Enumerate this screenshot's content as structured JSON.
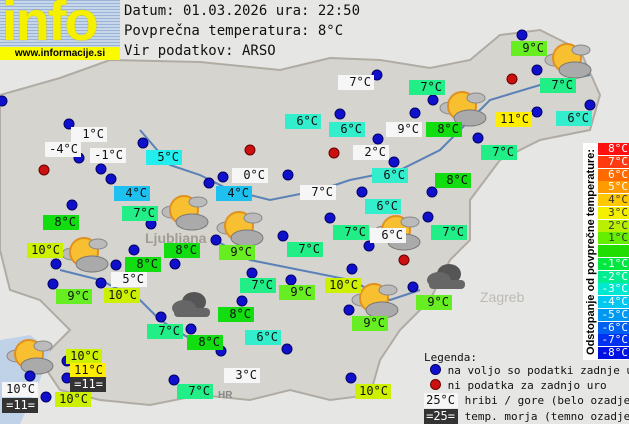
{
  "logo": {
    "word": "info",
    "url": "www.informacije.si"
  },
  "header": {
    "date_line": "Datum: 01.03.2026 ura: 22:50",
    "avg_line": "Povprečna temperatura: 8°C",
    "source_line": "Vir podatkov: ARSO"
  },
  "stations": [
    "1°C",
    "-4°C",
    "-1°C",
    "5°C",
    "0°C",
    "4°C",
    "4°C",
    "7°C",
    "8°C",
    "10°C",
    "8°C",
    "8°C",
    "9°C",
    "5°C",
    "9°C",
    "10°C",
    "7°C",
    "9°C",
    "7°C",
    "7°C",
    "7°C",
    "9°C",
    "7°C",
    "11°C",
    "6°C",
    "6°C",
    "9°C",
    "8°C",
    "2°C",
    "7°C",
    "6°C",
    "8°C",
    "7°C",
    "6°C",
    "7°C",
    "6°C",
    "7°C",
    "6°C",
    "10°C",
    "9°C",
    "9°C",
    "8°C",
    "7°C",
    "8°C",
    "6°C",
    "3°C",
    "7°C",
    "10°C",
    "10°C",
    "11°C",
    "=11=",
    "10°C",
    "=11=",
    "10°C"
  ],
  "map": {
    "labels": [
      "Ljubljana",
      "Zagreb",
      "HR"
    ]
  },
  "colorbar": {
    "title": "Odstopanje od povprečne temperature:",
    "cells": [
      {
        "label": "8°C",
        "color": "#ff1010"
      },
      {
        "label": "7°C",
        "color": "#ff3a10"
      },
      {
        "label": "6°C",
        "color": "#ff6a00"
      },
      {
        "label": "5°C",
        "color": "#ff9a00"
      },
      {
        "label": "4°C",
        "color": "#ffc800"
      },
      {
        "label": "3°C",
        "color": "#f4f000"
      },
      {
        "label": "2°C",
        "color": "#b8f000"
      },
      {
        "label": "1°C",
        "color": "#66ee00"
      },
      {
        "label": "",
        "color": "#22dd00"
      },
      {
        "label": "-1°C",
        "color": "#00e840"
      },
      {
        "label": "-2°C",
        "color": "#00ee90"
      },
      {
        "label": "-3°C",
        "color": "#00e8d0"
      },
      {
        "label": "-4°C",
        "color": "#00c8f0"
      },
      {
        "label": "-5°C",
        "color": "#0098f0"
      },
      {
        "label": "-6°C",
        "color": "#0060f0"
      },
      {
        "label": "-7°C",
        "color": "#0030f0"
      },
      {
        "label": "-8°C",
        "color": "#0010e0"
      }
    ]
  },
  "legend": {
    "title": "Legenda:",
    "blue": "na voljo so podatki zadnje ure",
    "red": "ni podatka za zadnjo uro",
    "white_sample": "25°C",
    "white_text": "hribi / gore (belo ozadje)",
    "dark_sample": "=25=",
    "dark_text": "temp. morja (temno ozadje)"
  }
}
